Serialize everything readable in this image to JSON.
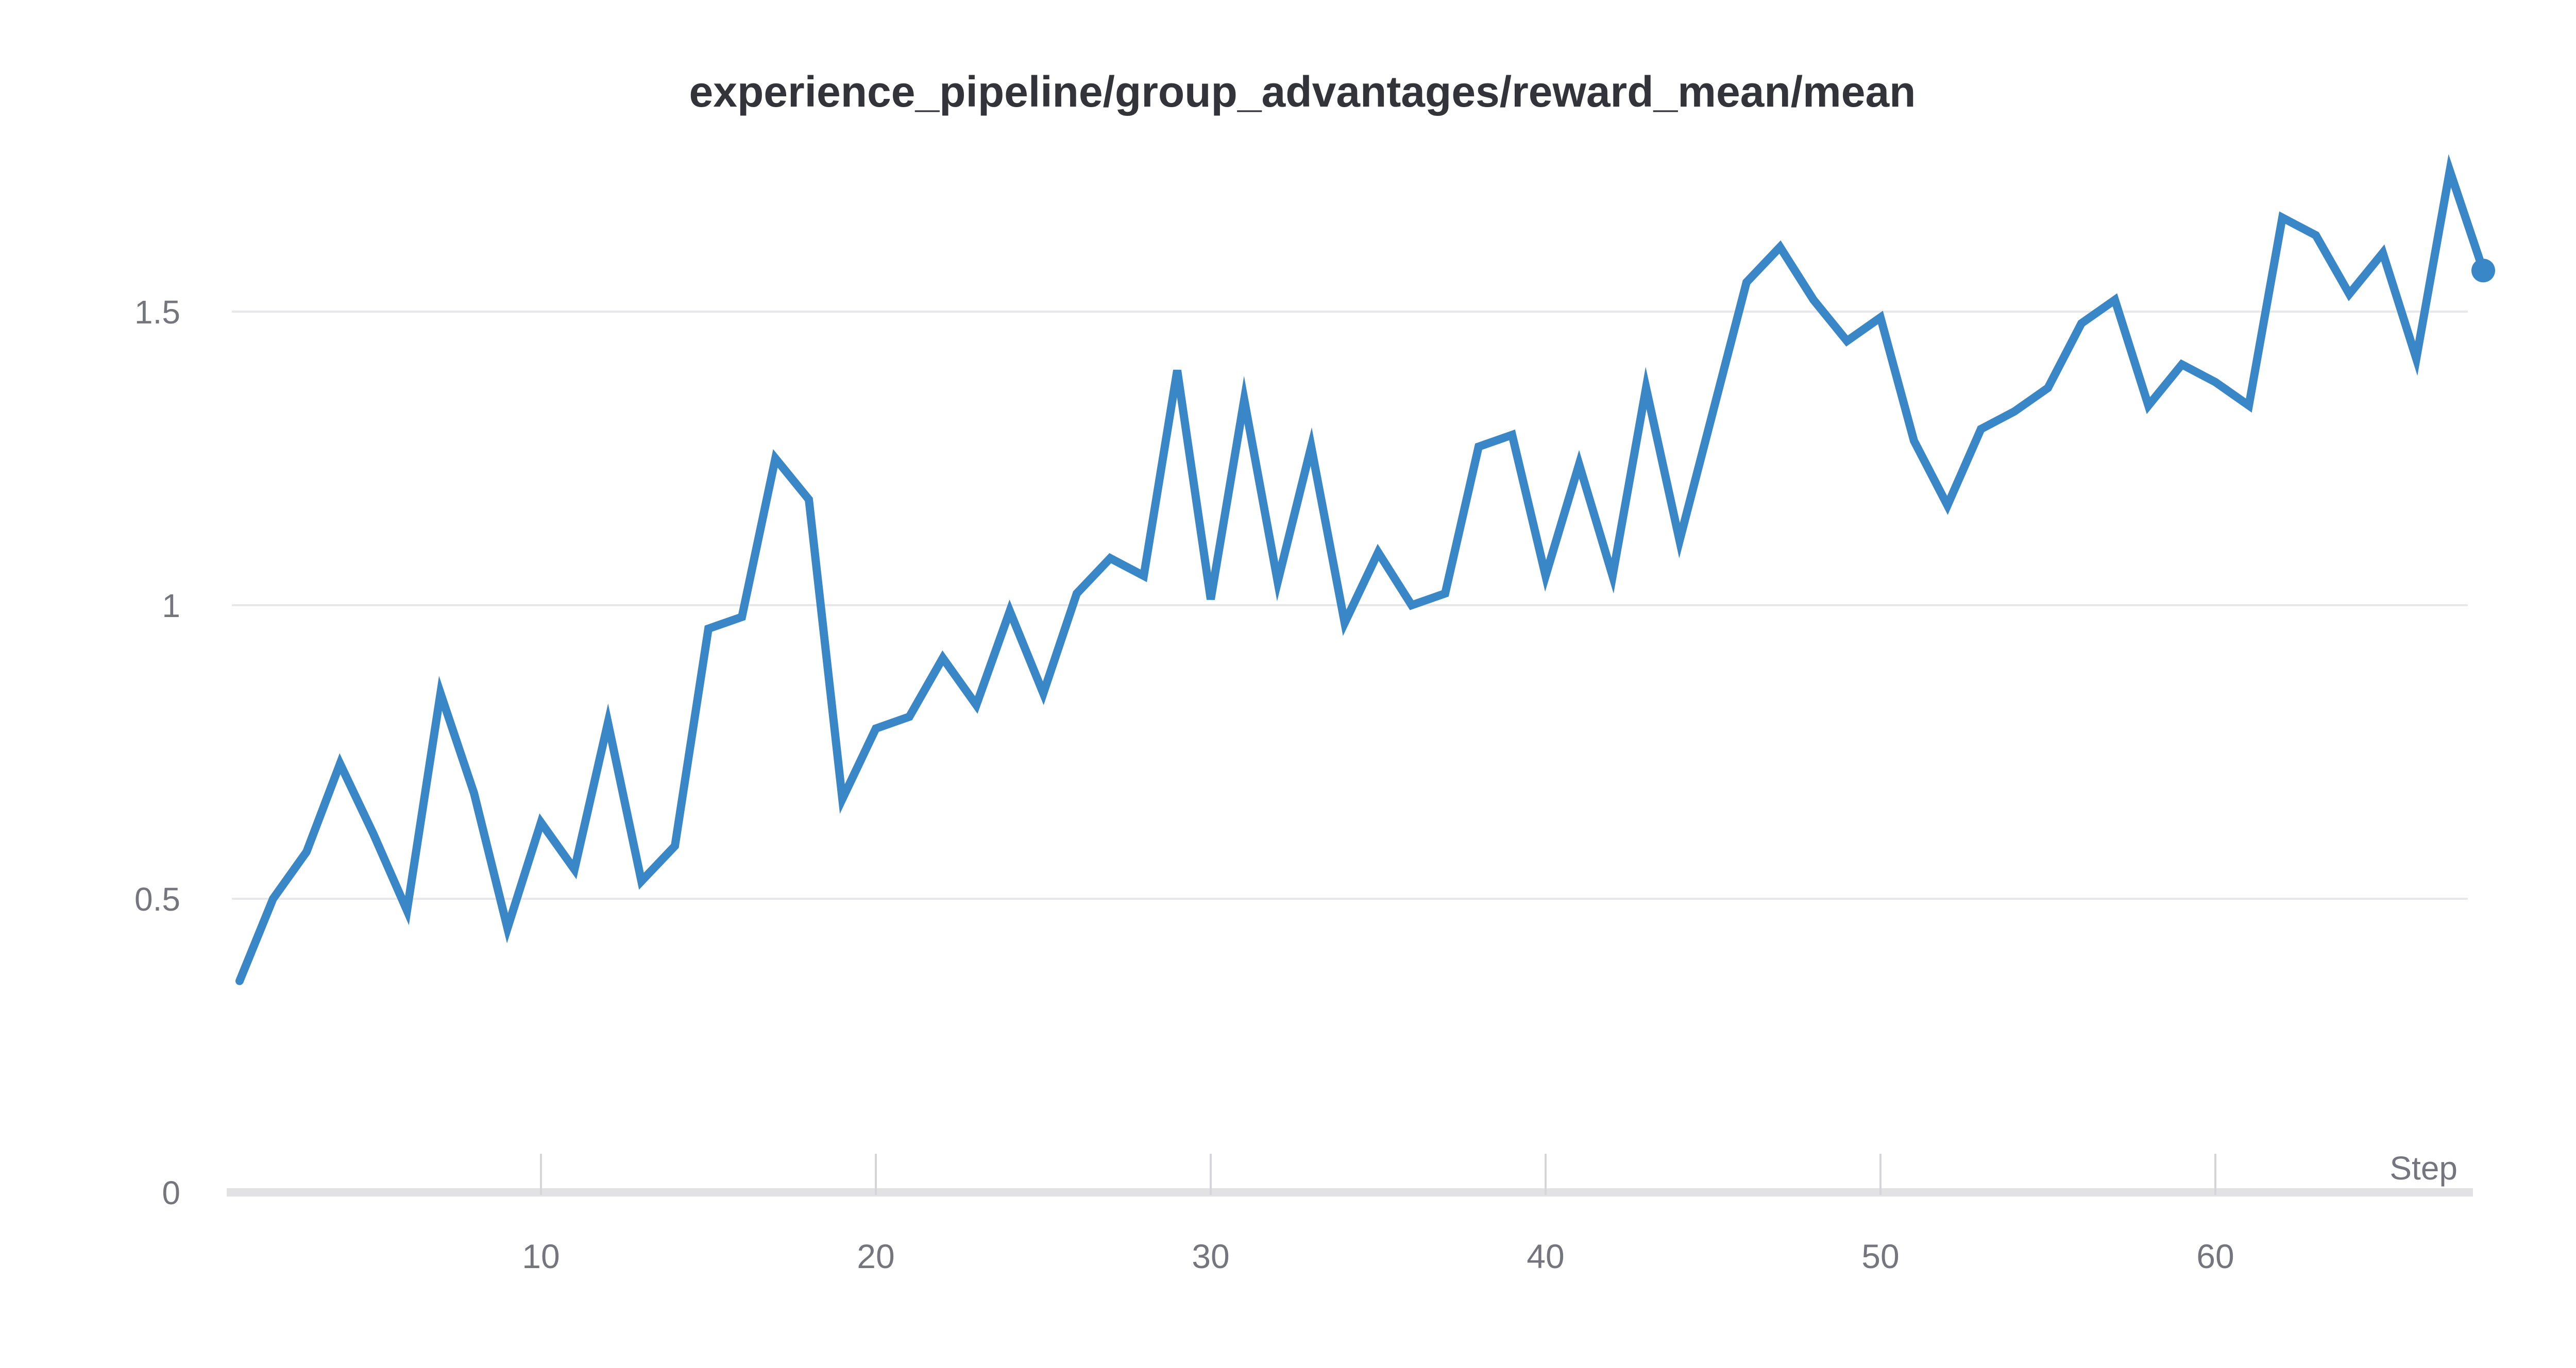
{
  "chart_data": {
    "type": "line",
    "title": "experience_pipeline/group_advantages/reward_mean/mean",
    "xlabel": "Step",
    "ylabel": "",
    "x": [
      1,
      2,
      3,
      4,
      5,
      6,
      7,
      8,
      9,
      10,
      11,
      12,
      13,
      14,
      15,
      16,
      17,
      18,
      19,
      20,
      21,
      22,
      23,
      24,
      25,
      26,
      27,
      28,
      29,
      30,
      31,
      32,
      33,
      34,
      35,
      36,
      37,
      38,
      39,
      40,
      41,
      42,
      43,
      44,
      45,
      46,
      47,
      48,
      49,
      50,
      51,
      52,
      53,
      54,
      55,
      56,
      57,
      58,
      59,
      60,
      61,
      62,
      63,
      64,
      65,
      66,
      67,
      68
    ],
    "values": [
      0.36,
      0.5,
      0.58,
      0.73,
      0.61,
      0.48,
      0.85,
      0.68,
      0.45,
      0.63,
      0.55,
      0.8,
      0.53,
      0.59,
      0.96,
      0.98,
      1.25,
      1.18,
      0.67,
      0.79,
      0.81,
      0.91,
      0.83,
      0.99,
      0.85,
      1.02,
      1.08,
      1.05,
      1.4,
      1.01,
      1.35,
      1.04,
      1.27,
      0.97,
      1.09,
      1.0,
      1.02,
      1.27,
      1.29,
      1.05,
      1.24,
      1.05,
      1.37,
      1.11,
      1.33,
      1.55,
      1.61,
      1.52,
      1.45,
      1.49,
      1.28,
      1.17,
      1.3,
      1.33,
      1.37,
      1.48,
      1.52,
      1.34,
      1.41,
      1.38,
      1.34,
      1.66,
      1.63,
      1.53,
      1.6,
      1.42,
      1.74,
      1.57
    ],
    "x_ticks": [
      10,
      20,
      30,
      40,
      50,
      60
    ],
    "y_ticks": [
      0,
      0.5,
      1,
      1.5
    ],
    "xlim": [
      1,
      68.6
    ],
    "ylim": [
      0,
      1.8
    ],
    "grid": "horizontal",
    "legend": "none",
    "end_marker": "dot",
    "colors": {
      "line": "#3a87c8",
      "marker": "#3a87c8",
      "title": "#33333a",
      "axis_labels": "#75757d",
      "gridline": "#e8e8ea",
      "axis_line": "#e2e2e4",
      "tick_mark": "#d6d6da",
      "background": "#ffffff"
    }
  }
}
